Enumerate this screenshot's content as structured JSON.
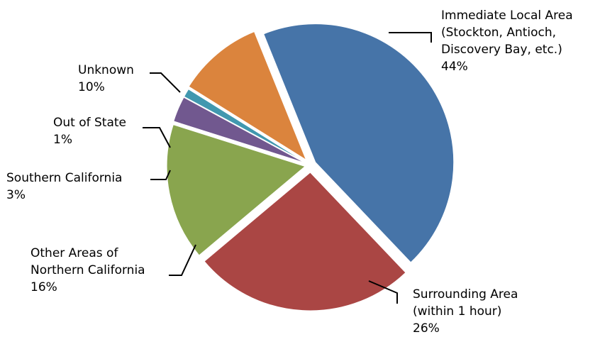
{
  "chart_data": {
    "type": "pie",
    "title": "",
    "slices": [
      {
        "label_lines": [
          "Immediate Local Area",
          "(Stockton, Antioch,",
          "Discovery Bay, etc.)"
        ],
        "percent_label": "44%",
        "value": 44,
        "color": "#4674a8"
      },
      {
        "label_lines": [
          "Surrounding Area",
          "(within 1 hour)"
        ],
        "percent_label": "26%",
        "value": 26,
        "color": "#aa4644"
      },
      {
        "label_lines": [
          "Other Areas of",
          "Northern California"
        ],
        "percent_label": "16%",
        "value": 16,
        "color": "#89a54e"
      },
      {
        "label_lines": [
          "Southern California"
        ],
        "percent_label": "3%",
        "value": 3,
        "color": "#71588f"
      },
      {
        "label_lines": [
          "Out of State"
        ],
        "percent_label": "1%",
        "value": 1,
        "color": "#4198af"
      },
      {
        "label_lines": [
          "Unknown"
        ],
        "percent_label": "10%",
        "value": 10,
        "color": "#db843d"
      }
    ],
    "legend": "none",
    "data_labels": "outside-with-leader-lines"
  }
}
